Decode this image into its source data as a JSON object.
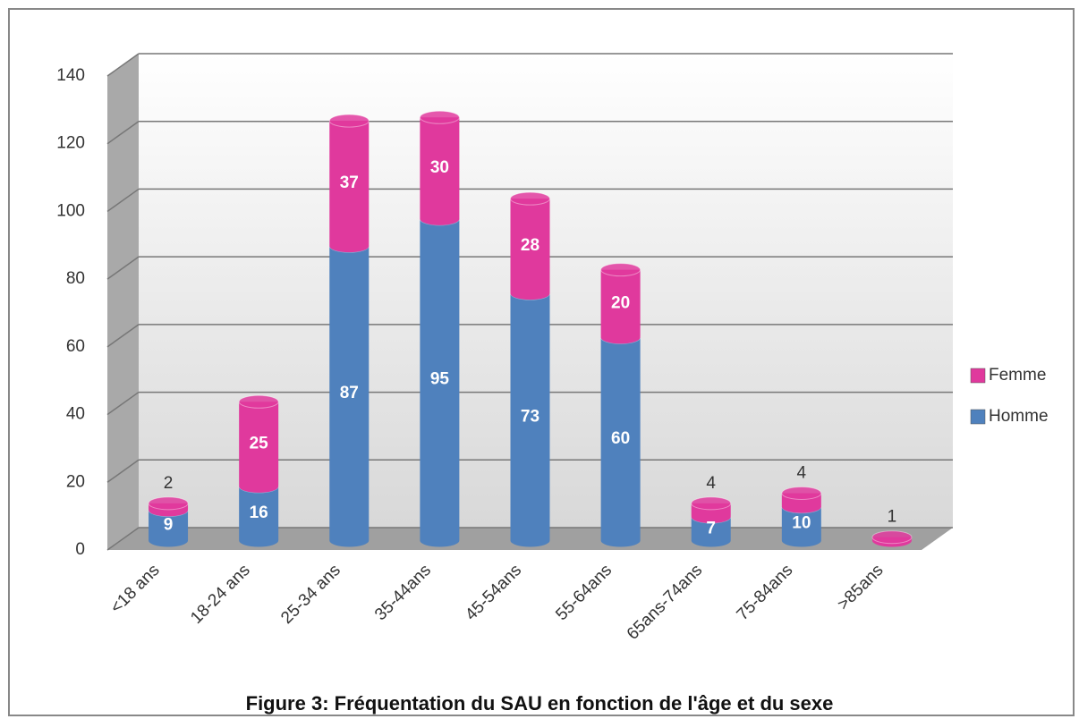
{
  "chart_data": {
    "type": "bar",
    "stacked": true,
    "style": "3d-cylinder",
    "title": "Figure 3: Fréquentation du SAU en fonction de l'âge et du sexe",
    "categories": [
      "<18 ans",
      "18-24 ans",
      "25-34 ans",
      "35-44ans",
      "45-54ans",
      "55-64ans",
      "65ans-74ans",
      "75-84ans",
      ">85ans"
    ],
    "series": [
      {
        "name": "Homme",
        "color": "#4f81bd",
        "values": [
          9,
          16,
          87,
          95,
          73,
          60,
          7,
          10,
          null
        ]
      },
      {
        "name": "Femme",
        "color": "#e0399d",
        "values": [
          2,
          25,
          37,
          30,
          28,
          20,
          4,
          4,
          1
        ]
      }
    ],
    "ylim": [
      0,
      140
    ],
    "yticks": [
      0,
      20,
      40,
      60,
      80,
      100,
      120,
      140
    ],
    "grid": true,
    "legend": "right"
  }
}
